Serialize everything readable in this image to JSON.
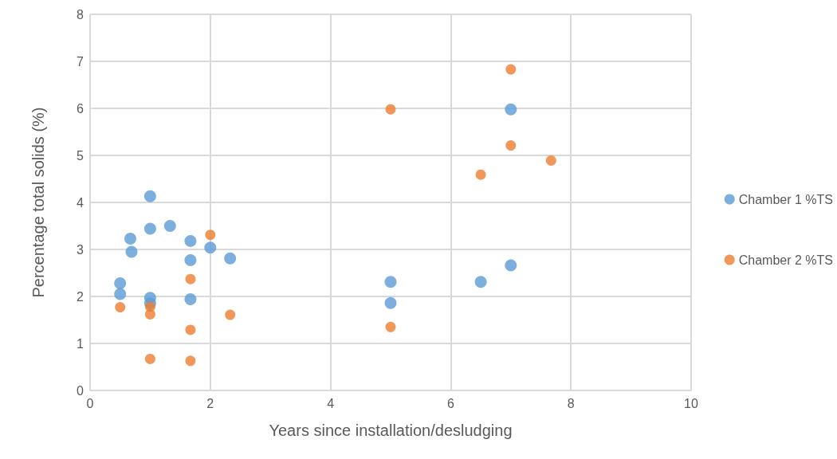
{
  "chart_data": {
    "type": "scatter",
    "xlabel": "Years since installation/desludging",
    "ylabel": "Percentage total solids (%)",
    "xlim": [
      0,
      10
    ],
    "xticks": [
      0,
      2,
      4,
      6,
      8,
      10
    ],
    "ylim": [
      0,
      8
    ],
    "yticks": [
      0,
      1,
      2,
      3,
      4,
      5,
      6,
      7,
      8
    ],
    "grid": true,
    "legend": "right",
    "marker": "circle",
    "series": [
      {
        "name": "Chamber 1 %TS",
        "color": "#5b9bd5",
        "x": [
          0.5,
          0.5,
          0.67,
          0.69,
          1,
          1,
          1,
          1,
          1.33,
          1.67,
          1.67,
          1.67,
          2,
          2.33,
          5,
          5,
          6.5,
          7,
          7
        ],
        "values": [
          2.28,
          2.05,
          3.23,
          2.95,
          4.13,
          3.44,
          1.97,
          1.85,
          3.5,
          3.18,
          2.77,
          1.94,
          3.04,
          2.81,
          2.31,
          1.86,
          2.31,
          2.66,
          5.98
        ]
      },
      {
        "name": "Chamber 2 %TS",
        "color": "#ed7d31",
        "x": [
          0.5,
          1,
          1,
          1,
          1.67,
          1.67,
          1.67,
          2,
          2.33,
          5,
          5,
          6.5,
          7,
          7,
          7.67
        ],
        "values": [
          1.77,
          1.78,
          1.62,
          0.67,
          2.37,
          1.29,
          0.63,
          3.31,
          1.61,
          5.98,
          1.35,
          4.59,
          5.21,
          6.83,
          4.89
        ]
      }
    ]
  }
}
